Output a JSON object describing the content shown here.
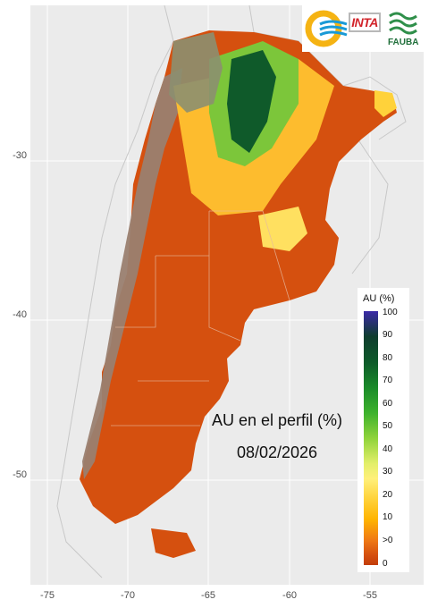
{
  "map": {
    "annotation": {
      "title": "AU en el perfil (%)",
      "date": "08/02/2026"
    },
    "axes": {
      "y_ticks": [
        "-30",
        "-40",
        "-50"
      ],
      "x_ticks": [
        "-75",
        "-70",
        "-65",
        "-60",
        "-55"
      ]
    },
    "legend": {
      "title": "AU (%)",
      "labels": [
        "100",
        "90",
        "80",
        "70",
        "60",
        "50",
        "40",
        "30",
        "20",
        "10",
        ">0",
        "0"
      ]
    },
    "logos": {
      "inta_text": "INTA",
      "fauba_text": "FAUBA"
    },
    "colors": {
      "background": "#ebebeb",
      "base_orange": "#d5500f",
      "dry_brown": "#9a8070",
      "wet_green": "#0f5a2a"
    }
  }
}
